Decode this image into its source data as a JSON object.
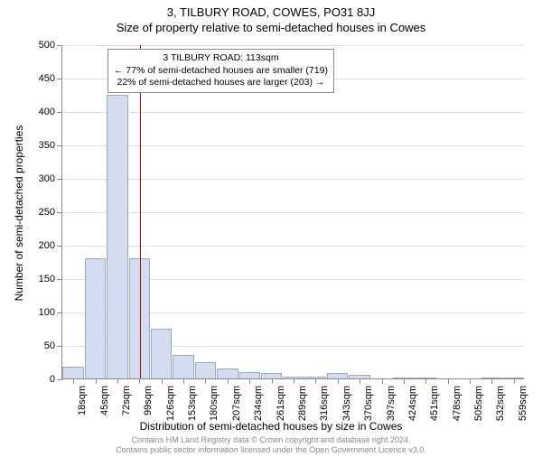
{
  "title_main": "3, TILBURY ROAD, COWES, PO31 8JJ",
  "title_sub": "Size of property relative to semi-detached houses in Cowes",
  "y_axis_title": "Number of semi-detached properties",
  "x_axis_title": "Distribution of semi-detached houses by size in Cowes",
  "chart": {
    "type": "histogram",
    "ylim": [
      0,
      500
    ],
    "ytick_step": 50,
    "bar_fill": "#d4ddf0",
    "bar_stroke": "#9aa8c8",
    "grid_color": "#e0e0e0",
    "x_labels": [
      "18sqm",
      "45sqm",
      "72sqm",
      "99sqm",
      "126sqm",
      "153sqm",
      "180sqm",
      "207sqm",
      "234sqm",
      "261sqm",
      "289sqm",
      "316sqm",
      "343sqm",
      "370sqm",
      "397sqm",
      "424sqm",
      "451sqm",
      "478sqm",
      "505sqm",
      "532sqm",
      "559sqm"
    ],
    "values": [
      18,
      180,
      425,
      180,
      75,
      35,
      25,
      15,
      10,
      8,
      3,
      3,
      8,
      5,
      0,
      2,
      2,
      0,
      0,
      2,
      2
    ],
    "ref_line": {
      "color": "#c00000",
      "x_value": 113,
      "x_min": 18,
      "x_max": 586
    },
    "annotation": {
      "line1": "3 TILBURY ROAD: 113sqm",
      "line2": "← 77% of semi-detached houses are smaller (719)",
      "line3": "22% of semi-detached houses are larger (203) →"
    }
  },
  "footer": {
    "line1": "Contains HM Land Registry data © Crown copyright and database right 2024.",
    "line2": "Contains public sector information licensed under the Open Government Licence v3.0."
  }
}
